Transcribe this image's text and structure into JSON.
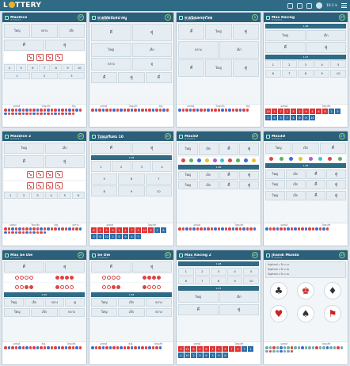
{
  "header": {
    "logo_text": "LOTTERY",
    "balance": "10.1 k"
  },
  "cards": [
    {
      "title": "MaxDice",
      "round": "#150434...",
      "timer": "27"
    },
    {
      "title": "หวยลีดัยนับหน่าหนู",
      "round": "#150434...",
      "timer": "5"
    },
    {
      "title": "หวยนิยมพรสุรไทย",
      "round": "#150434...",
      "timer": "5"
    },
    {
      "title": "Max Racing",
      "round": "#150434...",
      "timer": "27"
    },
    {
      "title": "MaxDice 2",
      "round": "#150434...",
      "timer": "27"
    },
    {
      "title": "โปลแลรีแดน 10",
      "round": "#150434...",
      "timer": "27"
    },
    {
      "title": "Max5D",
      "round": "#150434...",
      "timer": "27"
    },
    {
      "title": "Max3D",
      "round": "#150434...",
      "timer": "27"
    },
    {
      "title": "Max Se Die",
      "round": "#150434...",
      "timer": "27"
    },
    {
      "title": "Se Die",
      "round": "#150434...",
      "timer": "27"
    },
    {
      "title": "Max Racing 2",
      "round": "#150434...",
      "timer": "27"
    },
    {
      "title": "Jhandi Munda",
      "round": "#150434...",
      "timer": "27"
    }
  ],
  "labels": {
    "big": "ใหญ่",
    "small": "เล็ก",
    "odd": "คี่",
    "even": "คู่",
    "pair": "คู่",
    "mid": "กลาง",
    "triple": "ทริปเปิ้ล",
    "num1": "1",
    "num2": "2",
    "num3": "3",
    "num4": "4",
    "num5": "5",
    "num6": "6",
    "num7": "7",
    "num8": "8",
    "num9": "9",
    "num10": "10",
    "x198": "1.98",
    "x197": "1.97",
    "x290": "2.90"
  },
  "history_tabs": [
    "ผลลัพธ์",
    "ใหญ่/เล็ก",
    "คี่/คู่",
    "ผลรวม"
  ],
  "jhandi": {
    "rows": [
      "สัญลักษณ์ 1 ถึง 2.2x",
      "สัญลักษณ์ 3 ถึง 2.8x",
      "สัญลักษณ์ 4 ถึง 3.8x"
    ],
    "symbols": [
      "♣",
      "♚",
      "♦",
      "♥",
      "♠",
      "⚑"
    ]
  },
  "colors": {
    "header_bg": "#2f6b85",
    "card_head": "#2c5f7a",
    "red": "#d44",
    "blue": "#3b6fd1",
    "gold": "#e9b323"
  }
}
